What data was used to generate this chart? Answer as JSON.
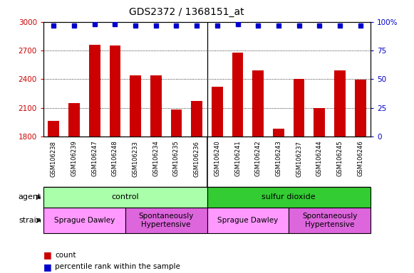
{
  "title": "GDS2372 / 1368151_at",
  "samples": [
    "GSM106238",
    "GSM106239",
    "GSM106247",
    "GSM106248",
    "GSM106233",
    "GSM106234",
    "GSM106235",
    "GSM106236",
    "GSM106240",
    "GSM106241",
    "GSM106242",
    "GSM106243",
    "GSM106237",
    "GSM106244",
    "GSM106245",
    "GSM106246"
  ],
  "counts": [
    1960,
    2150,
    2760,
    2755,
    2440,
    2440,
    2080,
    2175,
    2320,
    2680,
    2490,
    1880,
    2400,
    2095,
    2490,
    2395
  ],
  "percentiles": [
    97,
    97,
    98,
    98,
    97,
    97,
    97,
    97,
    97,
    98,
    97,
    97,
    97,
    97,
    97,
    97
  ],
  "ylim_left": [
    1800,
    3000
  ],
  "ylim_right": [
    0,
    100
  ],
  "yticks_left": [
    1800,
    2100,
    2400,
    2700,
    3000
  ],
  "yticks_right": [
    0,
    25,
    50,
    75,
    100
  ],
  "ytick_right_labels": [
    "0",
    "25",
    "50",
    "75",
    "100%"
  ],
  "bar_color": "#cc0000",
  "dot_color": "#0000cc",
  "bg_color": "#cccccc",
  "plot_bg": "#ffffff",
  "agent_groups": [
    {
      "label": "control",
      "start": 0,
      "end": 8,
      "color": "#aaffaa"
    },
    {
      "label": "sulfur dioxide",
      "start": 8,
      "end": 16,
      "color": "#33cc33"
    }
  ],
  "strain_groups": [
    {
      "label": "Sprague Dawley",
      "start": 0,
      "end": 4,
      "color": "#ff99ff"
    },
    {
      "label": "Spontaneously\nHypertensive",
      "start": 4,
      "end": 8,
      "color": "#dd66dd"
    },
    {
      "label": "Sprague Dawley",
      "start": 8,
      "end": 12,
      "color": "#ff99ff"
    },
    {
      "label": "Spontaneously\nHypertensive",
      "start": 12,
      "end": 16,
      "color": "#dd66dd"
    }
  ]
}
